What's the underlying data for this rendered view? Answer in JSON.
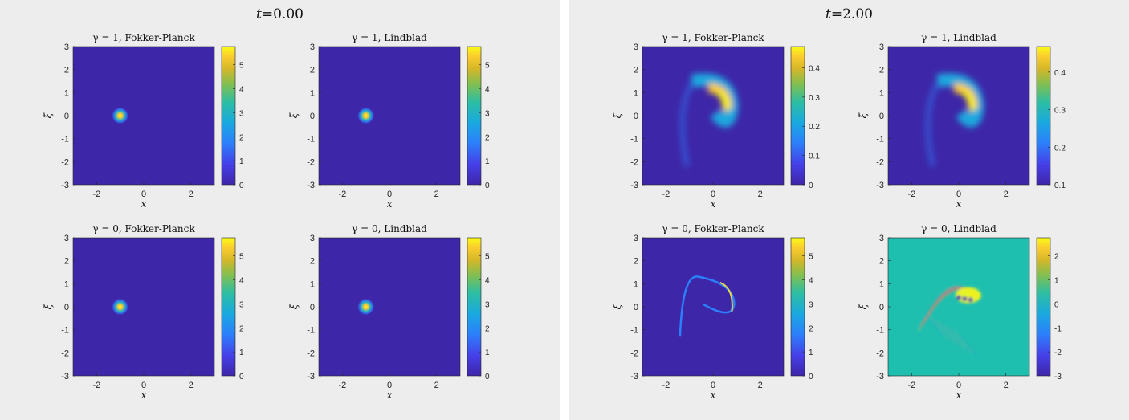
{
  "figures": [
    {
      "title_var": "t",
      "title_value": "=0.00",
      "plots": [
        {
          "title": "γ = 1, Fokker-Planck",
          "xlabel": "x",
          "ylabel": "ξ",
          "xticks": [
            "-2",
            "0",
            "2"
          ],
          "yticks": [
            "-3",
            "-2",
            "-1",
            "0",
            "1",
            "2",
            "3"
          ],
          "cticks": [
            "0",
            "1",
            "2",
            "3",
            "4",
            "5"
          ],
          "pattern": "blob"
        },
        {
          "title": "γ = 1, Lindblad",
          "xlabel": "x",
          "ylabel": "ξ",
          "xticks": [
            "-2",
            "0",
            "2"
          ],
          "yticks": [
            "-3",
            "-2",
            "-1",
            "0",
            "1",
            "2",
            "3"
          ],
          "cticks": [
            "0",
            "1",
            "2",
            "3",
            "4",
            "5"
          ],
          "pattern": "blob"
        },
        {
          "title": "γ = 0, Fokker-Planck",
          "xlabel": "x",
          "ylabel": "ξ",
          "xticks": [
            "-2",
            "0",
            "2"
          ],
          "yticks": [
            "-3",
            "-2",
            "-1",
            "0",
            "1",
            "2",
            "3"
          ],
          "cticks": [
            "0",
            "1",
            "2",
            "3",
            "4",
            "5"
          ],
          "pattern": "blob"
        },
        {
          "title": "γ = 0, Lindblad",
          "xlabel": "x",
          "ylabel": "ξ",
          "xticks": [
            "-2",
            "0",
            "2"
          ],
          "yticks": [
            "-3",
            "-2",
            "-1",
            "0",
            "1",
            "2",
            "3"
          ],
          "cticks": [
            "0",
            "1",
            "2",
            "3",
            "4",
            "5"
          ],
          "pattern": "blob"
        }
      ]
    },
    {
      "title_var": "t",
      "title_value": "=2.00",
      "plots": [
        {
          "title": "γ = 1, Fokker-Planck",
          "xlabel": "x",
          "ylabel": "ξ",
          "xticks": [
            "-2",
            "0",
            "2"
          ],
          "yticks": [
            "-3",
            "-2",
            "-1",
            "0",
            "1",
            "2",
            "3"
          ],
          "cticks": [
            "0",
            "0.1",
            "0.2",
            "0.3",
            "0.4"
          ],
          "pattern": "smear"
        },
        {
          "title": "γ = 1, Lindblad",
          "xlabel": "x",
          "ylabel": "ξ",
          "xticks": [
            "-2",
            "0",
            "2"
          ],
          "yticks": [
            "-3",
            "-2",
            "-1",
            "0",
            "1",
            "2",
            "3"
          ],
          "cticks": [
            "0.1",
            "0.2",
            "0.3",
            "0.4"
          ],
          "pattern": "smear"
        },
        {
          "title": "γ = 0, Fokker-Planck",
          "xlabel": "x",
          "ylabel": "ξ",
          "xticks": [
            "-2",
            "0",
            "2"
          ],
          "yticks": [
            "-3",
            "-2",
            "-1",
            "0",
            "1",
            "2",
            "3"
          ],
          "cticks": [
            "0",
            "1",
            "2",
            "3",
            "4",
            "5"
          ],
          "pattern": "curve"
        },
        {
          "title": "γ = 0, Lindblad",
          "xlabel": "x",
          "ylabel": "ξ",
          "xticks": [
            "-2",
            "0",
            "2"
          ],
          "yticks": [
            "-3",
            "-2",
            "-1",
            "0",
            "1",
            "2",
            "3"
          ],
          "cticks": [
            "-3",
            "-2",
            "-1",
            "0",
            "1",
            "2"
          ],
          "pattern": "fringe"
        }
      ]
    }
  ],
  "chart_data": [
    {
      "type": "heatmap",
      "title": "γ = 1, Fokker-Planck",
      "time": "0.00",
      "xlabel": "x",
      "ylabel": "ξ",
      "xlim": [
        -3,
        3
      ],
      "ylim": [
        -3,
        3
      ],
      "clim": [
        0,
        5.1
      ],
      "peak": {
        "x": -1,
        "y": 0
      }
    },
    {
      "type": "heatmap",
      "title": "γ = 1, Lindblad",
      "time": "0.00",
      "xlabel": "x",
      "ylabel": "ξ",
      "xlim": [
        -3,
        3
      ],
      "ylim": [
        -3,
        3
      ],
      "clim": [
        0,
        5.1
      ],
      "peak": {
        "x": -1,
        "y": 0
      }
    },
    {
      "type": "heatmap",
      "title": "γ = 0, Fokker-Planck",
      "time": "0.00",
      "xlabel": "x",
      "ylabel": "ξ",
      "xlim": [
        -3,
        3
      ],
      "ylim": [
        -3,
        3
      ],
      "clim": [
        0,
        5.1
      ],
      "peak": {
        "x": -1,
        "y": 0
      }
    },
    {
      "type": "heatmap",
      "title": "γ = 0, Lindblad",
      "time": "0.00",
      "xlabel": "x",
      "ylabel": "ξ",
      "xlim": [
        -3,
        3
      ],
      "ylim": [
        -3,
        3
      ],
      "clim": [
        0,
        5.1
      ],
      "peak": {
        "x": -1,
        "y": 0
      }
    },
    {
      "type": "heatmap",
      "title": "γ = 1, Fokker-Planck",
      "time": "2.00",
      "xlabel": "x",
      "ylabel": "ξ",
      "xlim": [
        -3,
        3
      ],
      "ylim": [
        -3,
        3
      ],
      "clim": [
        0,
        0.48
      ]
    },
    {
      "type": "heatmap",
      "title": "γ = 1, Lindblad",
      "time": "2.00",
      "xlabel": "x",
      "ylabel": "ξ",
      "xlim": [
        -3,
        3
      ],
      "ylim": [
        -3,
        3
      ],
      "clim": [
        0,
        0.48
      ]
    },
    {
      "type": "heatmap",
      "title": "γ = 0, Fokker-Planck",
      "time": "2.00",
      "xlabel": "x",
      "ylabel": "ξ",
      "xlim": [
        -3,
        3
      ],
      "ylim": [
        -3,
        3
      ],
      "clim": [
        0,
        5.1
      ]
    },
    {
      "type": "heatmap",
      "title": "γ = 0, Lindblad",
      "time": "2.00",
      "xlabel": "x",
      "ylabel": "ξ",
      "xlim": [
        -3,
        3
      ],
      "ylim": [
        -3,
        3
      ],
      "clim": [
        -3,
        2.9
      ]
    }
  ],
  "colors": {
    "panel_bg": "#ededed",
    "low": "#3e26a8",
    "mid": "#2eb7be",
    "high": "#f9fb15",
    "zero_teal": "#1fbfb0"
  }
}
